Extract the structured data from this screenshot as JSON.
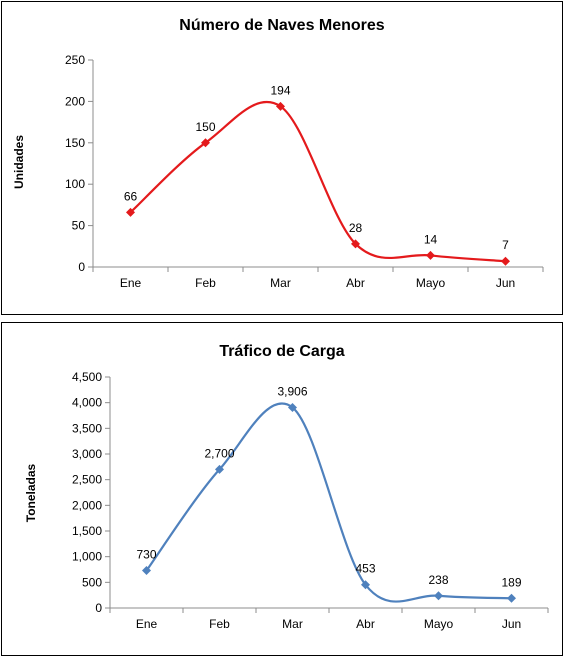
{
  "chart_data": [
    {
      "type": "line",
      "title": "Número de Naves Menores",
      "xlabel": "",
      "ylabel": "Unidades",
      "categories": [
        "Ene",
        "Feb",
        "Mar",
        "Abr",
        "Mayo",
        "Jun"
      ],
      "series": [
        {
          "values": [
            66,
            150,
            194,
            28,
            14,
            7
          ],
          "color": "#e41a1c"
        }
      ],
      "data_labels": [
        "66",
        "150",
        "194",
        "28",
        "14",
        "7"
      ],
      "ylim": [
        0,
        250
      ],
      "yticks": [
        "0",
        "50",
        "100",
        "150",
        "200",
        "250"
      ],
      "smooth": true,
      "marker": "diamond",
      "grid": false,
      "legend": "none"
    },
    {
      "type": "line",
      "title": "Tráfico de Carga",
      "xlabel": "",
      "ylabel": "Toneladas",
      "categories": [
        "Ene",
        "Feb",
        "Mar",
        "Abr",
        "Mayo",
        "Jun"
      ],
      "series": [
        {
          "values": [
            730,
            2700,
            3906,
            453,
            238,
            189
          ],
          "color": "#4f81bd"
        }
      ],
      "data_labels": [
        "730",
        "2,700",
        "3,906",
        "453",
        "238",
        "189"
      ],
      "ylim": [
        0,
        4500
      ],
      "yticks": [
        "0",
        "500",
        "1,000",
        "1,500",
        "2,000",
        "2,500",
        "3,000",
        "3,500",
        "4,000",
        "4,500"
      ],
      "smooth": true,
      "marker": "diamond",
      "grid": false,
      "legend": "none"
    }
  ]
}
